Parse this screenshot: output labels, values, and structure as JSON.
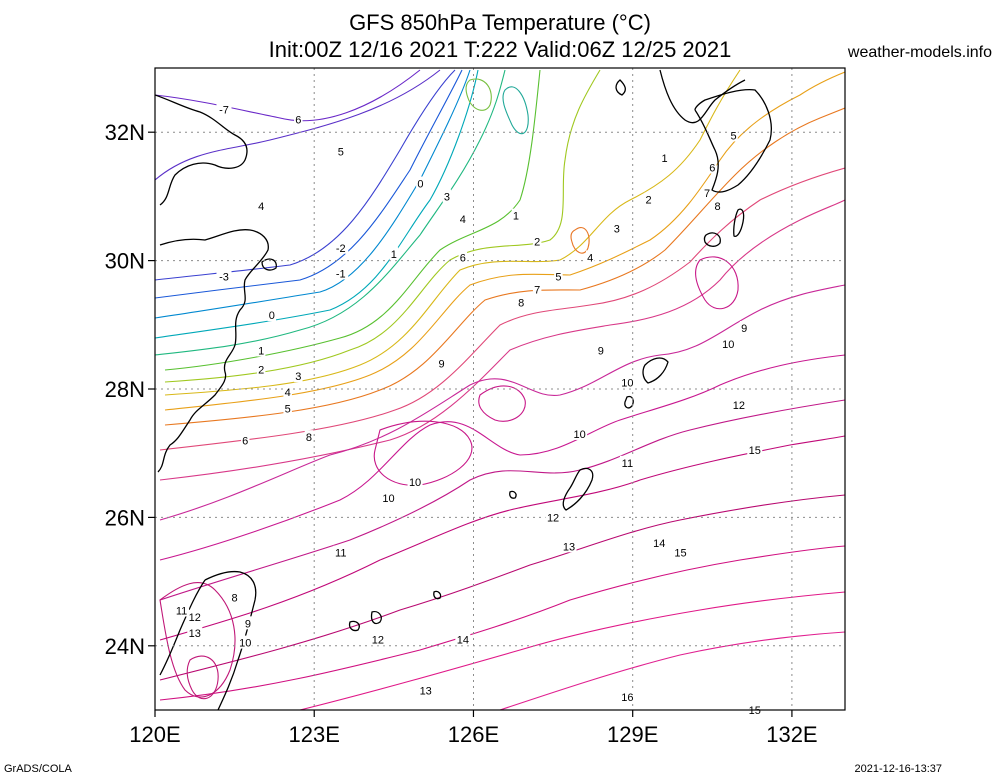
{
  "header": {
    "title_line1": "GFS 850hPa Temperature (°C)",
    "title_line2": "Init:00Z 12/16 2021 T:222 Valid:06Z 12/25 2021",
    "site": "weather-models.info"
  },
  "footer": {
    "software": "GrADS/COLA",
    "timestamp": "2021-12-16-13:37"
  },
  "map": {
    "lon_range": [
      120,
      133
    ],
    "lat_range": [
      23,
      33
    ],
    "grid": "dotted",
    "lat_ticks": [
      {
        "lat": 32,
        "label": "32N"
      },
      {
        "lat": 30,
        "label": "30N"
      },
      {
        "lat": 28,
        "label": "28N"
      },
      {
        "lat": 26,
        "label": "26N"
      },
      {
        "lat": 24,
        "label": "24N"
      }
    ],
    "lon_ticks": [
      {
        "lon": 120,
        "label": "120E"
      },
      {
        "lon": 123,
        "label": "123E"
      },
      {
        "lon": 126,
        "label": "126E"
      },
      {
        "lon": 129,
        "label": "129E"
      },
      {
        "lon": 132,
        "label": "132E"
      }
    ],
    "contour_labels": [
      {
        "text": "-7",
        "lon": 121.3,
        "lat": 32.35
      },
      {
        "text": "6",
        "lon": 122.7,
        "lat": 32.2
      },
      {
        "text": "5",
        "lon": 123.5,
        "lat": 31.7
      },
      {
        "text": "4",
        "lon": 122.0,
        "lat": 30.85
      },
      {
        "text": "0",
        "lon": 125.0,
        "lat": 31.2
      },
      {
        "text": "3",
        "lon": 125.5,
        "lat": 31.0
      },
      {
        "text": "4",
        "lon": 125.8,
        "lat": 30.65
      },
      {
        "text": "1",
        "lon": 126.8,
        "lat": 30.7
      },
      {
        "text": "-2",
        "lon": 123.5,
        "lat": 30.2
      },
      {
        "text": "2",
        "lon": 127.2,
        "lat": 30.3
      },
      {
        "text": "1",
        "lon": 124.5,
        "lat": 30.1
      },
      {
        "text": "6",
        "lon": 125.8,
        "lat": 30.05
      },
      {
        "text": "-1",
        "lon": 123.5,
        "lat": 29.8
      },
      {
        "text": "-3",
        "lon": 121.3,
        "lat": 29.75
      },
      {
        "text": "5",
        "lon": 127.6,
        "lat": 29.75
      },
      {
        "text": "7",
        "lon": 127.2,
        "lat": 29.55
      },
      {
        "text": "8",
        "lon": 126.9,
        "lat": 29.35
      },
      {
        "text": "0",
        "lon": 122.2,
        "lat": 29.15
      },
      {
        "text": "1",
        "lon": 122.0,
        "lat": 28.6
      },
      {
        "text": "2",
        "lon": 122.0,
        "lat": 28.3
      },
      {
        "text": "3",
        "lon": 122.7,
        "lat": 28.2
      },
      {
        "text": "4",
        "lon": 122.5,
        "lat": 27.95
      },
      {
        "text": "5",
        "lon": 122.5,
        "lat": 27.7
      },
      {
        "text": "9",
        "lon": 125.4,
        "lat": 28.4
      },
      {
        "text": "9",
        "lon": 128.4,
        "lat": 28.6
      },
      {
        "text": "10",
        "lon": 128.9,
        "lat": 28.1
      },
      {
        "text": "10",
        "lon": 130.8,
        "lat": 28.7
      },
      {
        "text": "9",
        "lon": 131.1,
        "lat": 28.95
      },
      {
        "text": "6",
        "lon": 121.7,
        "lat": 27.2
      },
      {
        "text": "8",
        "lon": 122.9,
        "lat": 27.25
      },
      {
        "text": "12",
        "lon": 131.0,
        "lat": 27.75
      },
      {
        "text": "10",
        "lon": 128.0,
        "lat": 27.3
      },
      {
        "text": "15",
        "lon": 131.3,
        "lat": 27.05
      },
      {
        "text": "11",
        "lon": 128.9,
        "lat": 26.85
      },
      {
        "text": "10",
        "lon": 124.9,
        "lat": 26.55
      },
      {
        "text": "10",
        "lon": 124.4,
        "lat": 26.3
      },
      {
        "text": "12",
        "lon": 127.5,
        "lat": 26.0
      },
      {
        "text": "13",
        "lon": 127.8,
        "lat": 25.55
      },
      {
        "text": "14",
        "lon": 129.5,
        "lat": 25.6
      },
      {
        "text": "15",
        "lon": 129.9,
        "lat": 25.45
      },
      {
        "text": "11",
        "lon": 123.5,
        "lat": 25.45
      },
      {
        "text": "8",
        "lon": 121.5,
        "lat": 24.75
      },
      {
        "text": "11",
        "lon": 120.5,
        "lat": 24.55
      },
      {
        "text": "12",
        "lon": 120.75,
        "lat": 24.45
      },
      {
        "text": "9",
        "lon": 121.75,
        "lat": 24.35
      },
      {
        "text": "13",
        "lon": 120.75,
        "lat": 24.2
      },
      {
        "text": "10",
        "lon": 121.7,
        "lat": 24.05
      },
      {
        "text": "12",
        "lon": 124.2,
        "lat": 24.1
      },
      {
        "text": "14",
        "lon": 125.8,
        "lat": 24.1
      },
      {
        "text": "13",
        "lon": 125.1,
        "lat": 23.3
      },
      {
        "text": "16",
        "lon": 128.9,
        "lat": 23.2
      },
      {
        "text": "15",
        "lon": 131.3,
        "lat": 23.0
      },
      {
        "text": "1",
        "lon": 129.6,
        "lat": 31.6
      },
      {
        "text": "2",
        "lon": 129.3,
        "lat": 30.95
      },
      {
        "text": "3",
        "lon": 128.7,
        "lat": 30.5
      },
      {
        "text": "4",
        "lon": 128.2,
        "lat": 30.05
      },
      {
        "text": "5",
        "lon": 130.9,
        "lat": 31.95
      },
      {
        "text": "6",
        "lon": 130.5,
        "lat": 31.45
      },
      {
        "text": "7",
        "lon": 130.4,
        "lat": 31.05
      },
      {
        "text": "8",
        "lon": 130.6,
        "lat": 30.85
      }
    ]
  }
}
